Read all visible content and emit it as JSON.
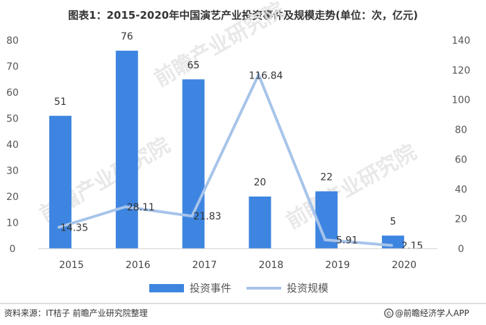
{
  "chart_data": {
    "type": "bar",
    "title": "图表1：2015-2020年中国演艺产业投资事件及规模走势(单位：次，亿元)",
    "categories": [
      "2015",
      "2016",
      "2017",
      "2018",
      "2019",
      "2020"
    ],
    "series": [
      {
        "name": "投资事件",
        "type": "bar",
        "axis": "left",
        "color": "#3d85e0",
        "values": [
          51,
          76,
          65,
          20,
          22,
          5
        ]
      },
      {
        "name": "投资规模",
        "type": "line",
        "axis": "right",
        "color": "#a7c4ea",
        "values": [
          14.35,
          28.11,
          21.83,
          116.84,
          5.91,
          2.15
        ]
      }
    ],
    "ylim_left": [
      0,
      80
    ],
    "yticks_left": [
      0,
      10,
      20,
      30,
      40,
      50,
      60,
      70,
      80
    ],
    "ylim_right": [
      0,
      140
    ],
    "yticks_right": [
      0,
      20,
      40,
      60,
      80,
      100,
      120,
      140
    ],
    "grid": false,
    "legend_position": "bottom"
  },
  "watermark": {
    "text": "前瞻产业研究院"
  },
  "footer": {
    "source": "资料来源：IT桔子 前瞻产业研究院整理",
    "brand_icon": "copyright-icon",
    "brand": "@前瞻经济学人APP"
  }
}
